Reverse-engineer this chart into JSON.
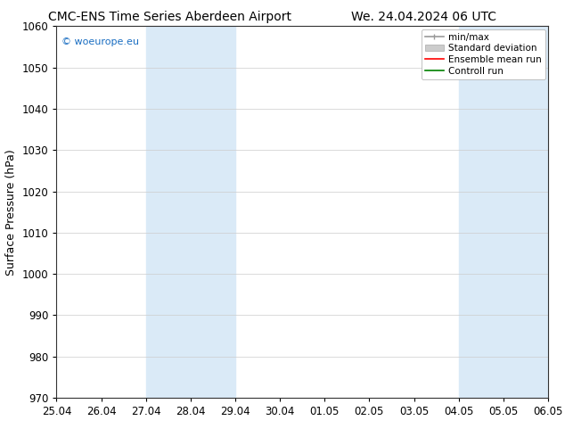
{
  "title_left": "CMC-ENS Time Series Aberdeen Airport",
  "title_right": "We. 24.04.2024 06 UTC",
  "ylabel": "Surface Pressure (hPa)",
  "ylim": [
    970,
    1060
  ],
  "yticks": [
    970,
    980,
    990,
    1000,
    1010,
    1020,
    1030,
    1040,
    1050,
    1060
  ],
  "xtick_labels": [
    "25.04",
    "26.04",
    "27.04",
    "28.04",
    "29.04",
    "30.04",
    "01.05",
    "02.05",
    "03.05",
    "04.05",
    "05.05",
    "06.05"
  ],
  "shaded_regions": [
    {
      "xstart": 2,
      "xend": 4,
      "color": "#daeaf7"
    },
    {
      "xstart": 9,
      "xend": 11,
      "color": "#daeaf7"
    }
  ],
  "legend_entries": [
    {
      "label": "min/max",
      "color": "#999999",
      "lw": 1.2
    },
    {
      "label": "Standard deviation",
      "color": "#cccccc",
      "lw": 5
    },
    {
      "label": "Ensemble mean run",
      "color": "red",
      "lw": 1.2
    },
    {
      "label": "Controll run",
      "color": "green",
      "lw": 1.2
    }
  ],
  "watermark": "© woeurope.eu",
  "watermark_color": "#1a6ec2",
  "background_color": "#ffffff",
  "title_fontsize": 10,
  "axis_fontsize": 9,
  "tick_fontsize": 8.5,
  "legend_fontsize": 7.5
}
